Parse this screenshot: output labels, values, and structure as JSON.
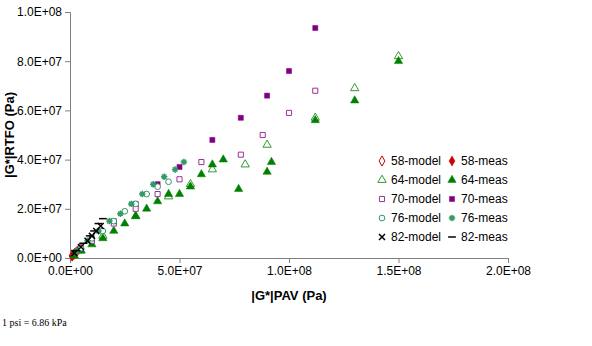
{
  "chart_data": {
    "type": "scatter",
    "x_label": "|G*|PAV (Pa)",
    "y_label": "|G*|RTFO (Pa)",
    "annotation": "1 psi = 6.86 kPa",
    "xlim": [
      0,
      200000000
    ],
    "ylim": [
      0,
      100000000
    ],
    "xticks": [
      {
        "value": 0,
        "label": "0.0E+00"
      },
      {
        "value": 50000000,
        "label": "5.0E+07"
      },
      {
        "value": 100000000,
        "label": "1.0E+08"
      },
      {
        "value": 150000000,
        "label": "1.5E+08"
      },
      {
        "value": 200000000,
        "label": "2.0E+08"
      }
    ],
    "yticks": [
      {
        "value": 0,
        "label": "0.0E+00"
      },
      {
        "value": 20000000,
        "label": "2.0E+07"
      },
      {
        "value": 40000000,
        "label": "4.0E+07"
      },
      {
        "value": 60000000,
        "label": "6.0E+07"
      },
      {
        "value": 80000000,
        "label": "8.0E+07"
      },
      {
        "value": 100000000,
        "label": "1.0E+08"
      }
    ],
    "grid": false,
    "legend": "lower right",
    "series": [
      {
        "name": "58-model",
        "color": "#cc0000",
        "marker": "open-diamond",
        "x": [
          1000000,
          2000000,
          3000000,
          5000000
        ],
        "values": [
          800000,
          1600000,
          2500000,
          4000000
        ]
      },
      {
        "name": "58-meas",
        "color": "#cc0000",
        "marker": "diamond",
        "x": [
          1000000,
          2000000,
          4000000
        ],
        "values": [
          900000,
          1800000,
          3500000
        ]
      },
      {
        "name": "64-model",
        "color": "#339933",
        "marker": "open-triangle",
        "x": [
          5000000,
          15000000,
          30000000,
          45000000,
          55000000,
          65000000,
          80000000,
          90000000,
          112000000,
          130000000,
          150000000
        ],
        "values": [
          3000000,
          9000000,
          17000000,
          25000000,
          30000000,
          36000000,
          38000000,
          46000000,
          57000000,
          69000000,
          82000000
        ]
      },
      {
        "name": "64-meas",
        "color": "#008000",
        "marker": "triangle",
        "x": [
          2000000,
          5000000,
          10000000,
          15000000,
          20000000,
          25000000,
          30000000,
          35000000,
          40000000,
          45000000,
          50000000,
          55000000,
          60000000,
          65000000,
          70000000,
          77000000,
          90000000,
          92000000,
          112000000,
          130000000,
          150000000
        ],
        "values": [
          1000000,
          3000000,
          5500000,
          8000000,
          11000000,
          14000000,
          17000000,
          20000000,
          23000000,
          26000000,
          26000000,
          29000000,
          34000000,
          38000000,
          40000000,
          28000000,
          35000000,
          39000000,
          56000000,
          64000000,
          80000000
        ]
      },
      {
        "name": "70-model",
        "color": "#993399",
        "marker": "open-square",
        "x": [
          10000000,
          20000000,
          30000000,
          40000000,
          50000000,
          60000000,
          78000000,
          88000000,
          100000000,
          112000000
        ],
        "values": [
          7000000,
          14000000,
          20000000,
          26000000,
          32000000,
          39000000,
          42000000,
          50000000,
          59000000,
          68000000
        ]
      },
      {
        "name": "70-meas",
        "color": "#800080",
        "marker": "square",
        "x": [
          5000000,
          10000000,
          20000000,
          30000000,
          40000000,
          50000000,
          65000000,
          78000000,
          90000000,
          100000000,
          112000000
        ],
        "values": [
          4000000,
          8000000,
          15000000,
          22000000,
          30000000,
          37000000,
          48000000,
          57000000,
          66000000,
          76000000,
          93500000
        ]
      },
      {
        "name": "76-model",
        "color": "#339966",
        "marker": "open-circle",
        "x": [
          5000000,
          10000000,
          15000000,
          20000000,
          25000000,
          30000000,
          35000000,
          40000000,
          45000000
        ],
        "values": [
          4000000,
          8000000,
          11000000,
          15000000,
          19000000,
          22000000,
          26000000,
          29000000,
          31000000
        ]
      },
      {
        "name": "76-meas",
        "color": "#339966",
        "marker": "asterisk",
        "x": [
          3000000,
          8000000,
          13000000,
          18000000,
          23000000,
          28000000,
          33000000,
          38000000,
          43000000,
          48000000,
          52000000
        ],
        "values": [
          3000000,
          7000000,
          11000000,
          15000000,
          18000000,
          22000000,
          26000000,
          30000000,
          33000000,
          36000000,
          39000000
        ]
      },
      {
        "name": "82-model",
        "color": "#000000",
        "marker": "x",
        "x": [
          2000000,
          5000000,
          8000000,
          10000000,
          12000000,
          14000000
        ],
        "values": [
          2000000,
          4500000,
          7000000,
          9000000,
          11000000,
          13000000
        ]
      },
      {
        "name": "82-meas",
        "color": "#000000",
        "marker": "dash",
        "x": [
          3000000,
          6000000,
          9000000,
          11000000,
          13000000,
          15000000
        ],
        "values": [
          3000000,
          6000000,
          9000000,
          11000000,
          14000000,
          16000000
        ]
      }
    ]
  }
}
